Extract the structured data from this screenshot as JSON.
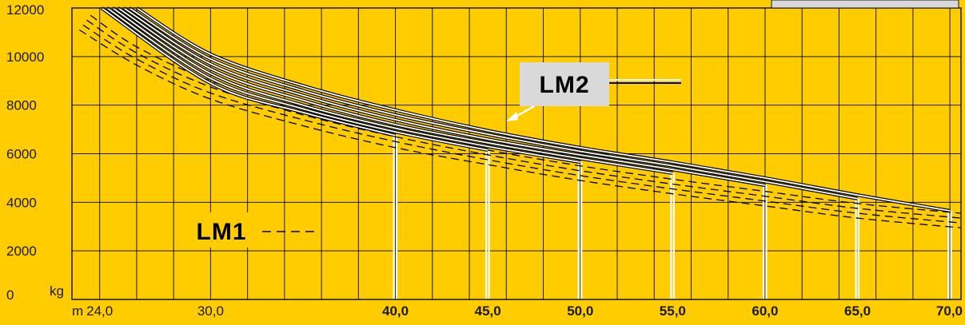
{
  "colors": {
    "background": "#FFCC00",
    "grid": "#1a1a1a",
    "lm2_stroke": "#000000",
    "lm2_gap": "#FFFFFF",
    "lm1_stroke": "#000000",
    "label_bg": "#D9D9D9"
  },
  "chart_data": {
    "type": "line",
    "title": "",
    "xlabel": "m",
    "ylabel": "kg",
    "xlim": [
      22.5,
      70.6
    ],
    "ylim": [
      0,
      12000
    ],
    "grid": true,
    "y_ticks": [
      0,
      2000,
      4000,
      6000,
      8000,
      10000,
      12000
    ],
    "y_tick_labels": [
      "0",
      "2000",
      "4000",
      "6000",
      "8000",
      "10000",
      "12000"
    ],
    "x_ticks": [
      24,
      30,
      40,
      45,
      50,
      55,
      60,
      65,
      70
    ],
    "x_tick_labels": [
      "24,0",
      "30,0",
      "40,0",
      "45,0",
      "50,0",
      "55,0",
      "60,0",
      "65,0",
      "70,0"
    ],
    "x_tick_bold": [
      false,
      false,
      true,
      true,
      true,
      true,
      true,
      true,
      true
    ],
    "series_groups": [
      {
        "name": "LM2",
        "style": "double-solid",
        "series": [
          {
            "x": [
              26.0,
              30.0,
              35.0,
              40.0,
              45.0,
              50.0,
              55.0,
              60.0,
              65.0,
              70.0
            ],
            "values": [
              12000,
              10100,
              8800,
              7800,
              6950,
              6250,
              5650,
              5000,
              4300,
              3650
            ]
          },
          {
            "x": [
              25.6,
              30.0,
              35.0,
              40.0,
              45.0,
              50.0,
              55.0,
              60.0,
              65.0
            ],
            "values": [
              12000,
              9900,
              8600,
              7600,
              6800,
              6100,
              5500,
              4850,
              4150
            ]
          },
          {
            "x": [
              25.3,
              30.0,
              35.0,
              40.0,
              45.0,
              50.0,
              55.0,
              60.0
            ],
            "values": [
              12000,
              9700,
              8400,
              7400,
              6600,
              5950,
              5350,
              4700
            ]
          },
          {
            "x": [
              25.0,
              30.0,
              35.0,
              40.0,
              45.0,
              50.0,
              55.0
            ],
            "values": [
              12000,
              9500,
              8200,
              7200,
              6450,
              5800,
              5200
            ]
          },
          {
            "x": [
              24.7,
              30.0,
              35.0,
              40.0,
              45.0,
              50.0
            ],
            "values": [
              12000,
              9300,
              8000,
              7050,
              6300,
              5650
            ]
          },
          {
            "x": [
              24.4,
              30.0,
              35.0,
              40.0,
              45.0
            ],
            "values": [
              12000,
              9100,
              7850,
              6900,
              6150
            ]
          },
          {
            "x": [
              24.1,
              30.0,
              35.0,
              40.0
            ],
            "values": [
              12000,
              8900,
              7700,
              6750
            ]
          }
        ]
      },
      {
        "name": "LM1",
        "style": "dashed",
        "series": [
          {
            "x": [
              23.5,
              26.0,
              30.0,
              35.0,
              40.0,
              45.0,
              50.0,
              55.0,
              60.0,
              65.0,
              70.6
            ],
            "values": [
              11700,
              10400,
              9000,
              7850,
              6900,
              6150,
              5500,
              4950,
              4450,
              3950,
              3550
            ]
          },
          {
            "x": [
              23.3,
              26.0,
              30.0,
              35.0,
              40.0,
              45.0,
              50.0,
              55.0,
              60.0,
              65.0,
              70.6
            ],
            "values": [
              11500,
              10150,
              8750,
              7600,
              6700,
              5950,
              5300,
              4750,
              4250,
              3750,
              3350
            ]
          },
          {
            "x": [
              23.1,
              26.0,
              30.0,
              35.0,
              40.0,
              45.0,
              50.0,
              55.0,
              60.0,
              65.0,
              70.6
            ],
            "values": [
              11300,
              9900,
              8500,
              7400,
              6500,
              5750,
              5100,
              4550,
              4050,
              3550,
              3150
            ]
          },
          {
            "x": [
              22.9,
              26.0,
              30.0,
              35.0,
              40.0,
              45.0,
              50.0,
              55.0,
              60.0,
              65.0,
              70.6
            ],
            "values": [
              11100,
              9650,
              8250,
              7150,
              6250,
              5550,
              4900,
              4350,
              3850,
              3350,
              2950
            ]
          }
        ]
      }
    ],
    "annotations": [
      {
        "label": "LM2",
        "style": "white-box",
        "callout": "arrow"
      },
      {
        "label": "LM1",
        "style": "yellow-box",
        "callout": "dashed-line"
      }
    ]
  }
}
